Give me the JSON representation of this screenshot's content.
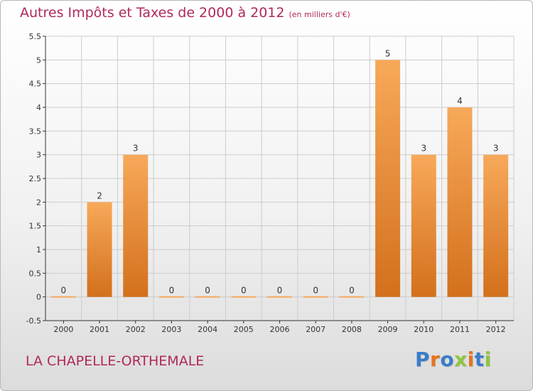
{
  "title": "Autres Impôts et Taxes de 2000 à 2012",
  "unit_note": "(en milliers d'€)",
  "location": "LA CHAPELLE-ORTHEMALE",
  "logo": {
    "text": "Proxiti",
    "colors": [
      "#3a7dc9",
      "#e8731c",
      "#3a7dc9",
      "#8dc63f",
      "#e8731c",
      "#3a7dc9",
      "#8dc63f"
    ]
  },
  "colors": {
    "title": "#b0285c",
    "bar_top": "#f7a95a",
    "bar_bottom": "#d3701c",
    "grid": "#cccccc"
  },
  "chart_data": {
    "type": "bar",
    "title": "Autres Impôts et Taxes de 2000 à 2012",
    "subtitle": "(en milliers d'€)",
    "xlabel": "",
    "ylabel": "",
    "categories": [
      "2000",
      "2001",
      "2002",
      "2003",
      "2004",
      "2005",
      "2006",
      "2007",
      "2008",
      "2009",
      "2010",
      "2011",
      "2012"
    ],
    "values": [
      0,
      2,
      3,
      0,
      0,
      0,
      0,
      0,
      0,
      5,
      3,
      4,
      3
    ],
    "ylim": [
      -0.5,
      5.5
    ],
    "yticks": [
      "5.5",
      "5",
      "4.5",
      "4",
      "3.5",
      "3",
      "2.5",
      "2",
      "1.5",
      "1",
      "0.5",
      "0",
      "-0.5"
    ],
    "ytick_values": [
      5.5,
      5,
      4.5,
      4,
      3.5,
      3,
      2.5,
      2,
      1.5,
      1,
      0.5,
      0,
      -0.5
    ],
    "grid": true
  }
}
